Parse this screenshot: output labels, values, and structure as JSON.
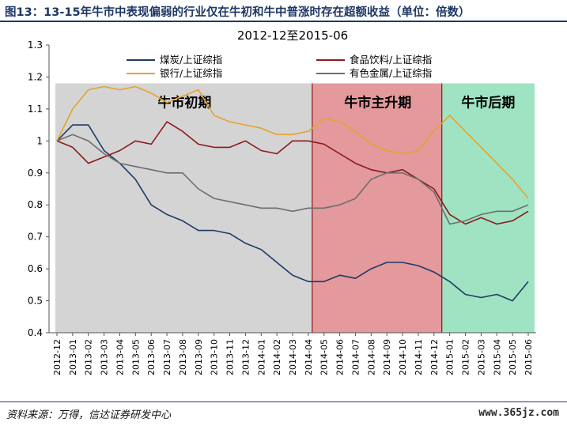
{
  "figure": {
    "title": "图13：13-15年牛市中表现偏弱的行业仅在牛初和牛中普涨时存在超额收益（单位：倍数）",
    "source": "资料来源：万得，信达证券研发中心",
    "watermark": "www.365jz.com"
  },
  "chart_data": {
    "type": "line",
    "title": "2012-12至2015-06",
    "ylim": [
      0.4,
      1.3
    ],
    "yticks": [
      "0.4",
      "0.5",
      "0.6",
      "0.7",
      "0.8",
      "0.9",
      "1",
      "1.1",
      "1.2",
      "1.3"
    ],
    "grid": false,
    "legend_position": "top",
    "categories": [
      "2012-12",
      "2013-01",
      "2013-02",
      "2013-03",
      "2013-04",
      "2013-05",
      "2013-06",
      "2013-07",
      "2013-08",
      "2013-09",
      "2013-10",
      "2013-11",
      "2013-12",
      "2014-01",
      "2014-02",
      "2014-03",
      "2014-04",
      "2014-05",
      "2014-06",
      "2014-07",
      "2014-08",
      "2014-09",
      "2014-10",
      "2014-11",
      "2014-12",
      "2015-01",
      "2015-02",
      "2015-03",
      "2015-04",
      "2015-05",
      "2015-06"
    ],
    "phases": [
      {
        "label": "牛市初期",
        "from": 0,
        "to": 16.35,
        "color": "#d4d4d4"
      },
      {
        "label": "牛市主升期",
        "from": 16.35,
        "to": 24.6,
        "color": "#e4999c"
      },
      {
        "label": "牛市后期",
        "from": 24.6,
        "to": 30.9,
        "color": "#9fe3c2"
      }
    ],
    "series": [
      {
        "name": "煤炭/上证综指",
        "color": "#1f3a68",
        "values": [
          1.0,
          1.05,
          1.05,
          0.97,
          0.93,
          0.88,
          0.8,
          0.77,
          0.75,
          0.72,
          0.72,
          0.71,
          0.68,
          0.66,
          0.62,
          0.58,
          0.56,
          0.56,
          0.58,
          0.57,
          0.6,
          0.62,
          0.62,
          0.61,
          0.59,
          0.56,
          0.52,
          0.51,
          0.52,
          0.5,
          0.56
        ]
      },
      {
        "name": "食品饮料/上证综指",
        "color": "#8b1a1a",
        "values": [
          1.0,
          0.98,
          0.93,
          0.95,
          0.97,
          1.0,
          0.99,
          1.06,
          1.03,
          0.99,
          0.98,
          0.98,
          1.0,
          0.97,
          0.96,
          1.0,
          1.0,
          0.99,
          0.96,
          0.93,
          0.91,
          0.9,
          0.91,
          0.88,
          0.85,
          0.77,
          0.74,
          0.76,
          0.74,
          0.75,
          0.78
        ]
      },
      {
        "name": "银行/上证综指",
        "color": "#e6a22e",
        "values": [
          1.0,
          1.1,
          1.16,
          1.17,
          1.16,
          1.17,
          1.15,
          1.12,
          1.14,
          1.16,
          1.08,
          1.06,
          1.05,
          1.04,
          1.02,
          1.02,
          1.03,
          1.07,
          1.06,
          1.03,
          0.99,
          0.97,
          0.96,
          0.97,
          1.03,
          1.08,
          1.03,
          0.98,
          0.93,
          0.88,
          0.82
        ]
      },
      {
        "name": "有色金属/上证综指",
        "color": "#6e6e6e",
        "values": [
          1.0,
          1.02,
          1.0,
          0.96,
          0.93,
          0.92,
          0.91,
          0.9,
          0.9,
          0.85,
          0.82,
          0.81,
          0.8,
          0.79,
          0.79,
          0.78,
          0.79,
          0.79,
          0.8,
          0.82,
          0.88,
          0.9,
          0.9,
          0.88,
          0.84,
          0.74,
          0.75,
          0.77,
          0.78,
          0.78,
          0.8
        ]
      }
    ]
  }
}
